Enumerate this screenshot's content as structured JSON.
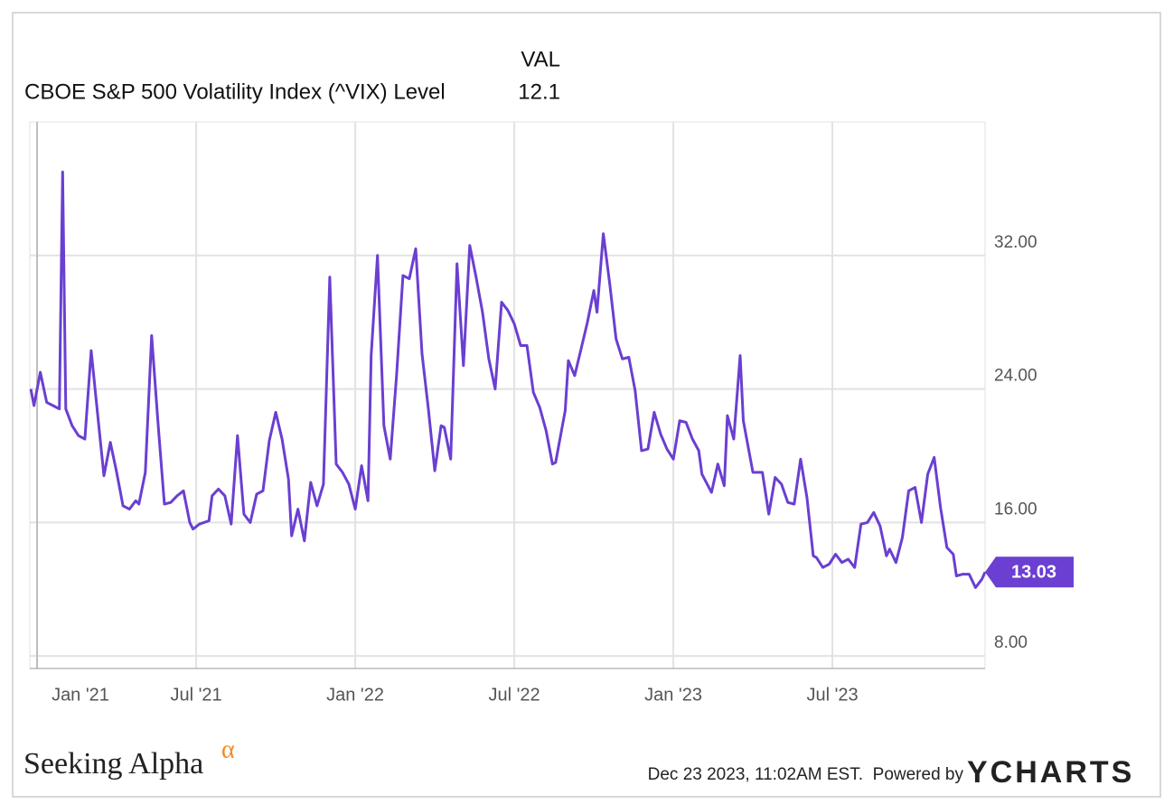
{
  "chart_data": {
    "type": "line",
    "header_label": "VAL",
    "series": [
      {
        "name": "CBOE S&P 500 Volatility Index (^VIX) Level",
        "color": "#6a3fd1",
        "x": [
          2020.98,
          2020.99,
          2021.01,
          2021.03,
          2021.05,
          2021.07,
          2021.08,
          2021.09,
          2021.11,
          2021.13,
          2021.15,
          2021.17,
          2021.19,
          2021.21,
          2021.23,
          2021.25,
          2021.27,
          2021.29,
          2021.31,
          2021.32,
          2021.34,
          2021.36,
          2021.38,
          2021.4,
          2021.42,
          2021.44,
          2021.46,
          2021.48,
          2021.49,
          2021.51,
          2021.54,
          2021.55,
          2021.57,
          2021.59,
          2021.61,
          2021.63,
          2021.65,
          2021.67,
          2021.69,
          2021.71,
          2021.73,
          2021.75,
          2021.77,
          2021.79,
          2021.8,
          2021.82,
          2021.84,
          2021.86,
          2021.88,
          2021.9,
          2021.92,
          2021.94,
          2021.96,
          2021.98,
          2022.0,
          2022.02,
          2022.04,
          2022.05,
          2022.07,
          2022.09,
          2022.11,
          2022.13,
          2022.15,
          2022.17,
          2022.19,
          2022.21,
          2022.23,
          2022.25,
          2022.27,
          2022.28,
          2022.3,
          2022.32,
          2022.34,
          2022.36,
          2022.38,
          2022.4,
          2022.42,
          2022.44,
          2022.46,
          2022.48,
          2022.5,
          2022.52,
          2022.54,
          2022.56,
          2022.58,
          2022.6,
          2022.62,
          2022.63,
          2022.66,
          2022.67,
          2022.69,
          2022.71,
          2022.73,
          2022.75,
          2022.76,
          2022.78,
          2022.8,
          2022.82,
          2022.84,
          2022.86,
          2022.88,
          2022.9,
          2022.92,
          2022.94,
          2022.96,
          2022.98,
          2023.0,
          2023.02,
          2023.04,
          2023.06,
          2023.08,
          2023.09,
          2023.12,
          2023.14,
          2023.16,
          2023.17,
          2023.19,
          2023.21,
          2023.22,
          2023.25,
          2023.27,
          2023.28,
          2023.3,
          2023.32,
          2023.34,
          2023.36,
          2023.38,
          2023.4,
          2023.42,
          2023.44,
          2023.45,
          2023.47,
          2023.49,
          2023.51,
          2023.53,
          2023.55,
          2023.57,
          2023.59,
          2023.61,
          2023.63,
          2023.65,
          2023.67,
          2023.68,
          2023.7,
          2023.72,
          2023.74,
          2023.76,
          2023.78,
          2023.8,
          2023.82,
          2023.84,
          2023.86,
          2023.88,
          2023.89,
          2023.91,
          2023.93,
          2023.95,
          2023.97,
          2023.98
        ],
        "values": [
          24.0,
          23.0,
          25.0,
          23.2,
          23.0,
          22.8,
          37.0,
          22.8,
          21.8,
          21.2,
          21.0,
          26.3,
          22.5,
          18.8,
          20.8,
          19.0,
          17.0,
          16.8,
          17.3,
          17.1,
          19.0,
          27.2,
          22.0,
          17.1,
          17.2,
          17.6,
          17.9,
          16.0,
          15.6,
          15.9,
          16.1,
          17.6,
          18.0,
          17.6,
          15.9,
          21.2,
          16.5,
          16.0,
          17.7,
          17.9,
          20.9,
          22.6,
          21.0,
          18.6,
          15.2,
          16.8,
          14.9,
          18.4,
          17.0,
          18.3,
          30.7,
          19.5,
          19.0,
          18.3,
          16.8,
          19.4,
          17.3,
          26.0,
          32.0,
          21.8,
          19.8,
          24.8,
          30.8,
          30.6,
          32.4,
          26.1,
          22.8,
          19.1,
          21.8,
          21.7,
          19.8,
          31.5,
          25.4,
          32.6,
          30.7,
          28.6,
          25.8,
          24.0,
          29.2,
          28.7,
          27.9,
          26.6,
          26.6,
          23.8,
          22.9,
          21.5,
          19.5,
          19.6,
          22.7,
          25.7,
          24.8,
          26.4,
          28.0,
          29.9,
          28.6,
          33.3,
          30.3,
          27.0,
          25.8,
          25.9,
          23.9,
          20.3,
          20.4,
          22.6,
          21.3,
          20.4,
          19.8,
          22.1,
          22.0,
          21.0,
          20.3,
          18.9,
          17.8,
          19.5,
          18.2,
          22.4,
          21.0,
          26.0,
          22.1,
          19.0,
          19.0,
          19.0,
          16.5,
          18.7,
          18.3,
          17.2,
          17.1,
          19.8,
          17.5,
          14.0,
          13.9,
          13.3,
          13.5,
          14.1,
          13.6,
          13.8,
          13.3,
          15.9,
          16.0,
          16.6,
          15.8,
          14.0,
          14.4,
          13.6,
          15.1,
          17.9,
          18.1,
          16.0,
          18.9,
          19.9,
          16.9,
          14.5,
          14.1,
          12.8,
          12.9,
          12.9,
          12.1,
          12.6,
          13.03
        ]
      }
    ],
    "xlim": [
      2020.977,
      2023.98
    ],
    "xticks": [
      {
        "value": 2021,
        "label": "Jan '21"
      },
      {
        "value": 2021.5,
        "label": "Jul '21"
      },
      {
        "value": 2022,
        "label": "Jan '22"
      },
      {
        "value": 2022.5,
        "label": "Jul '22"
      },
      {
        "value": 2023,
        "label": "Jan '23"
      },
      {
        "value": 2023.5,
        "label": "Jul '23"
      }
    ],
    "ylim": [
      7.25,
      40
    ],
    "yticks": [
      {
        "value": 8,
        "label": "8.00"
      },
      {
        "value": 16,
        "label": "16.00"
      },
      {
        "value": 24,
        "label": "24.00"
      },
      {
        "value": 32,
        "label": "32.00"
      }
    ],
    "grid": true
  },
  "footer": {
    "brand": "Seeking Alpha",
    "brand_mark": "α",
    "timestamp": "Dec 23 2023, 11:02AM EST.",
    "powered": "Powered by",
    "provider": "YCHARTS"
  }
}
